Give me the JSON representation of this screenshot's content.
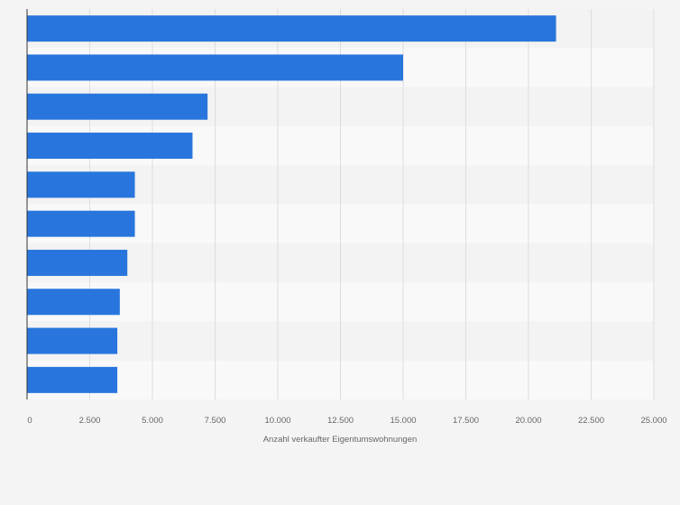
{
  "chart_data": {
    "type": "bar",
    "orientation": "horizontal",
    "values": [
      21100,
      15000,
      7200,
      6600,
      4300,
      4300,
      4000,
      3700,
      3600,
      3600
    ],
    "xlabel": "Anzahl verkaufter Eigentumswohnungen",
    "ylabel": "",
    "xlim": [
      0,
      25000
    ],
    "xticks": [
      0,
      2500,
      5000,
      7500,
      10000,
      12500,
      15000,
      17500,
      20000,
      22500,
      25000
    ],
    "xtick_labels": [
      "0",
      "2.500",
      "5.000",
      "7.500",
      "10.000",
      "12.500",
      "15.000",
      "17.500",
      "20.000",
      "22.500",
      "25.000"
    ],
    "grid": true,
    "legend": "none",
    "colors": {
      "bar": "#2876dd",
      "background": "#f4f4f4",
      "band_light": "#f9f9f9",
      "band_dark": "#f3f3f3",
      "grid": "#dddddd",
      "axis": "#333333",
      "text": "#666666"
    }
  }
}
